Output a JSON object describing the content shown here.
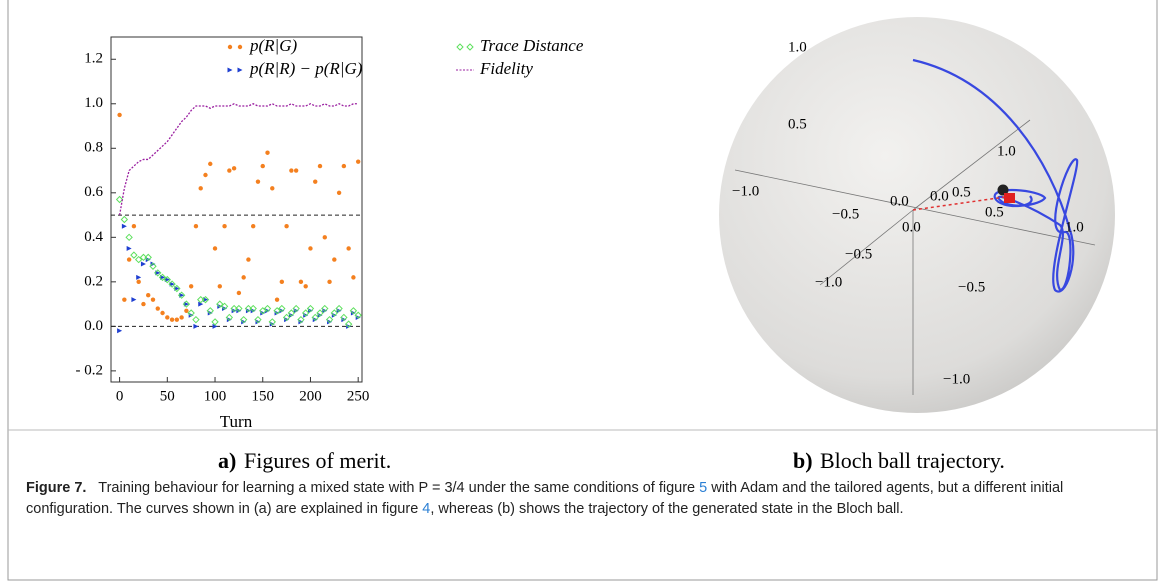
{
  "chart_data": [
    {
      "type": "scatter",
      "x_label": "Turn",
      "caption_label": "a)",
      "caption": "Figures of merit.",
      "xlim": [
        -9,
        254
      ],
      "xticks": [
        0,
        50,
        100,
        150,
        200,
        250
      ],
      "ylim": [
        -0.25,
        1.3
      ],
      "yticks": [
        {
          "value": -0.2,
          "label": "- 0.2"
        },
        {
          "value": 0,
          "label": "0.0"
        },
        0.2,
        0.4,
        0.6,
        0.8,
        {
          "value": 1,
          "label": "1.0"
        },
        1.2
      ],
      "hlines": [
        0.5,
        0
      ],
      "x": [
        0,
        5,
        10,
        15,
        20,
        25,
        30,
        35,
        40,
        45,
        50,
        55,
        60,
        65,
        70,
        75,
        80,
        85,
        90,
        95,
        100,
        105,
        110,
        115,
        120,
        125,
        130,
        135,
        140,
        145,
        150,
        155,
        160,
        165,
        170,
        175,
        180,
        185,
        190,
        195,
        200,
        205,
        210,
        215,
        220,
        225,
        230,
        235,
        240,
        245,
        250
      ],
      "series": [
        {
          "name": "p(R|G)",
          "color": "#f4801f",
          "marker": "circle",
          "values": [
            0.95,
            0.12,
            0.3,
            0.45,
            0.2,
            0.1,
            0.14,
            0.12,
            0.08,
            0.06,
            0.04,
            0.03,
            0.03,
            0.04,
            0.07,
            0.18,
            0.45,
            0.62,
            0.68,
            0.73,
            0.35,
            0.18,
            0.45,
            0.7,
            0.71,
            0.15,
            0.22,
            0.3,
            0.45,
            0.65,
            0.72,
            0.78,
            0.62,
            0.12,
            0.2,
            0.45,
            0.7,
            0.7,
            0.2,
            0.18,
            0.35,
            0.65,
            0.72,
            0.4,
            0.2,
            0.3,
            0.6,
            0.72,
            0.35,
            0.22,
            0.74
          ]
        },
        {
          "name": "p(R|R) − p(R|G)",
          "color": "#1f3fd1",
          "marker": "triangle",
          "values": [
            -0.02,
            0.45,
            0.35,
            0.12,
            0.22,
            0.28,
            0.3,
            0.28,
            0.24,
            0.22,
            0.21,
            0.19,
            0.17,
            0.14,
            0.1,
            0.05,
            0.0,
            0.1,
            0.12,
            0.06,
            0.0,
            0.09,
            0.08,
            0.03,
            0.07,
            0.07,
            0.02,
            0.07,
            0.07,
            0.02,
            0.06,
            0.07,
            0.01,
            0.06,
            0.07,
            0.03,
            0.05,
            0.07,
            0.02,
            0.05,
            0.07,
            0.03,
            0.05,
            0.07,
            0.02,
            0.05,
            0.07,
            0.03,
            0.0,
            0.06,
            0.04
          ]
        },
        {
          "name": "Trace Distance",
          "color": "#5ee05e",
          "marker": "diamond",
          "values": [
            0.57,
            0.48,
            0.4,
            0.32,
            0.3,
            0.31,
            0.31,
            0.27,
            0.24,
            0.22,
            0.21,
            0.19,
            0.17,
            0.14,
            0.1,
            0.06,
            0.03,
            0.12,
            0.12,
            0.07,
            0.02,
            0.1,
            0.09,
            0.04,
            0.08,
            0.08,
            0.03,
            0.08,
            0.08,
            0.03,
            0.07,
            0.08,
            0.02,
            0.07,
            0.08,
            0.04,
            0.06,
            0.08,
            0.03,
            0.06,
            0.08,
            0.04,
            0.06,
            0.08,
            0.03,
            0.06,
            0.08,
            0.04,
            0.01,
            0.07,
            0.05
          ]
        },
        {
          "name": "Fidelity",
          "color": "#9a1fa0",
          "marker": "line",
          "values": [
            0.5,
            0.62,
            0.7,
            0.72,
            0.74,
            0.75,
            0.75,
            0.77,
            0.79,
            0.81,
            0.83,
            0.86,
            0.89,
            0.92,
            0.94,
            0.97,
            0.99,
            0.99,
            0.99,
            0.98,
            0.99,
            0.99,
            0.99,
            0.99,
            1.0,
            0.99,
            0.99,
            0.99,
            1.0,
            0.99,
            0.99,
            0.99,
            1.0,
            0.99,
            0.99,
            0.99,
            1.0,
            0.99,
            0.99,
            0.99,
            1.0,
            0.99,
            0.99,
            1.0,
            0.99,
            0.99,
            1.0,
            0.99,
            0.99,
            1.0,
            1.0
          ]
        }
      ]
    }
  ],
  "bloch": {
    "caption_label": "b)",
    "caption": "Bloch ball trajectory.",
    "tick_labels": [
      "1.0",
      "0.5",
      "−1.0",
      "−0.5",
      "1.0",
      "0.0",
      "0.5",
      "0.0",
      "0.5",
      "0.0",
      "1.0",
      "−0.5",
      "−1.0",
      "−0.5",
      "−1.0"
    ]
  },
  "caption": {
    "label": "Figure 7.",
    "text_1": "Training behaviour for learning a mixed state with P = 3/4 under the same conditions of figure ",
    "ref_1": "5",
    "text_2": " with Adam and the tailored agents, but a different initial configuration. The curves shown in (a) are explained in figure ",
    "ref_2": "4",
    "text_3": ", whereas (b) shows the trajectory of the generated state in the Bloch ball."
  }
}
